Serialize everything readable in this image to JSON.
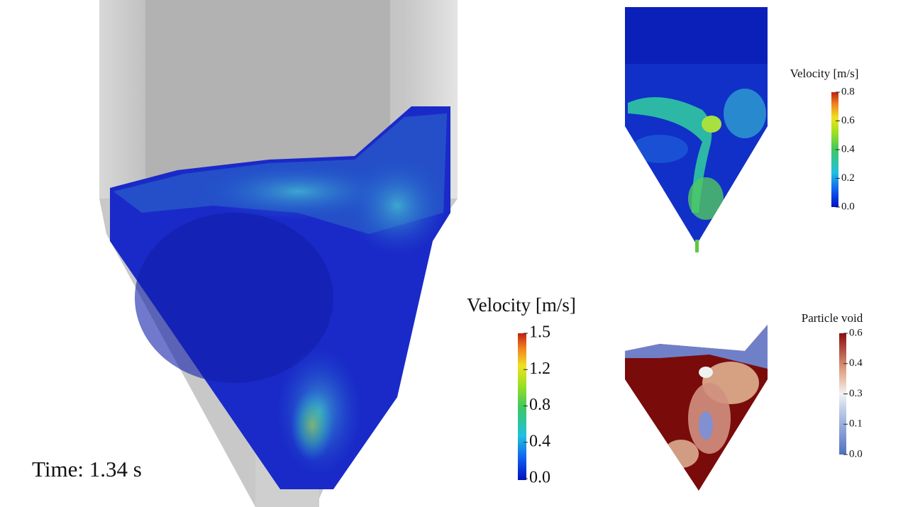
{
  "time_label": "Time: 1.34 s",
  "colorbars": [
    {
      "title": "Velocity [m/s]",
      "ticks": [
        "1.5",
        "1.2",
        "0.8",
        "0.4",
        "0.0"
      ]
    },
    {
      "title": "Velocity [m/s]",
      "ticks": [
        "0.8",
        "0.6",
        "0.4",
        "0.2",
        "0.0"
      ]
    },
    {
      "title": "Particle void",
      "ticks": [
        "0.6",
        "0.4",
        "0.3",
        "0.1",
        "0.0"
      ]
    }
  ]
}
